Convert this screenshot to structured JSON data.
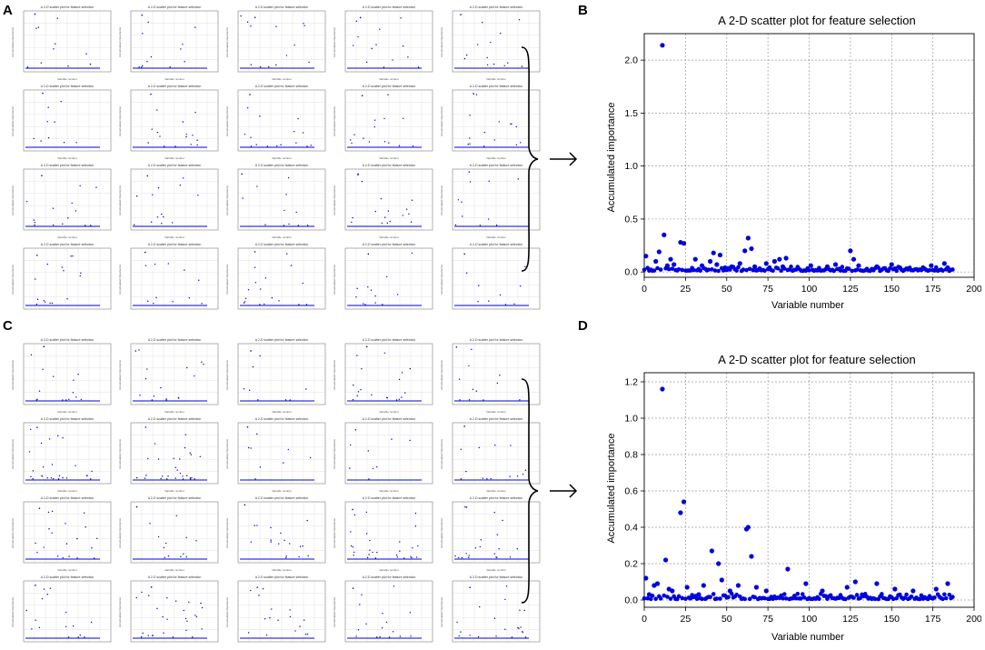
{
  "panels": {
    "a": "A",
    "b": "B",
    "c": "C",
    "d": "D"
  },
  "small_plot_labels": {
    "title": "A 2-D scatter plot for feature selection",
    "xlabel": "Variable number",
    "ylabel": "Accumulated importance"
  },
  "colors": {
    "points": "#0000dd",
    "grid": "#9a9a9a"
  },
  "chart_data": [
    {
      "id": "B",
      "type": "scatter",
      "title": "A 2-D scatter plot for feature selection",
      "xlabel": "Variable number",
      "ylabel": "Accumulated importance",
      "xlim": [
        0,
        200
      ],
      "ylim": [
        -0.05,
        2.25
      ],
      "xticks": [
        0,
        25,
        50,
        75,
        100,
        125,
        150,
        175,
        200
      ],
      "yticks": [
        0.0,
        0.5,
        1.0,
        1.5,
        2.0
      ],
      "ytick_labels": [
        "0.0",
        "0.5",
        "1.0",
        "1.5",
        "2.0"
      ],
      "grid": true,
      "highlights": [
        {
          "x": 1,
          "y": 0.15
        },
        {
          "x": 4,
          "y": 0.02
        },
        {
          "x": 7,
          "y": 0.1
        },
        {
          "x": 9,
          "y": 0.19
        },
        {
          "x": 11,
          "y": 2.14
        },
        {
          "x": 12,
          "y": 0.35
        },
        {
          "x": 14,
          "y": 0.06
        },
        {
          "x": 16,
          "y": 0.12
        },
        {
          "x": 18,
          "y": 0.07
        },
        {
          "x": 22,
          "y": 0.28
        },
        {
          "x": 24,
          "y": 0.27
        },
        {
          "x": 31,
          "y": 0.12
        },
        {
          "x": 35,
          "y": 0.06
        },
        {
          "x": 40,
          "y": 0.1
        },
        {
          "x": 42,
          "y": 0.18
        },
        {
          "x": 44,
          "y": 0.07
        },
        {
          "x": 46,
          "y": 0.16
        },
        {
          "x": 53,
          "y": 0.05
        },
        {
          "x": 58,
          "y": 0.08
        },
        {
          "x": 61,
          "y": 0.2
        },
        {
          "x": 63,
          "y": 0.32
        },
        {
          "x": 65,
          "y": 0.22
        },
        {
          "x": 67,
          "y": 0.05
        },
        {
          "x": 74,
          "y": 0.08
        },
        {
          "x": 79,
          "y": 0.1
        },
        {
          "x": 82,
          "y": 0.12
        },
        {
          "x": 84,
          "y": 0.05
        },
        {
          "x": 86,
          "y": 0.13
        },
        {
          "x": 101,
          "y": 0.06
        },
        {
          "x": 111,
          "y": 0.05
        },
        {
          "x": 116,
          "y": 0.07
        },
        {
          "x": 125,
          "y": 0.2
        },
        {
          "x": 127,
          "y": 0.12
        },
        {
          "x": 130,
          "y": 0.06
        },
        {
          "x": 141,
          "y": 0.05
        },
        {
          "x": 150,
          "y": 0.07
        },
        {
          "x": 155,
          "y": 0.04
        },
        {
          "x": 170,
          "y": 0.03
        },
        {
          "x": 174,
          "y": 0.06
        },
        {
          "x": 182,
          "y": 0.08
        },
        {
          "x": 184,
          "y": 0.04
        }
      ],
      "baseline": {
        "x_start": 0,
        "x_end": 187,
        "level": 0.01,
        "jitter": 0.05
      }
    },
    {
      "id": "D",
      "type": "scatter",
      "title": "A 2-D scatter plot for feature selection",
      "xlabel": "Variable number",
      "ylabel": "Accumulated importance",
      "xlim": [
        0,
        200
      ],
      "ylim": [
        -0.04,
        1.25
      ],
      "xticks": [
        0,
        25,
        50,
        75,
        100,
        125,
        150,
        175,
        200
      ],
      "yticks": [
        0.0,
        0.2,
        0.4,
        0.6,
        0.8,
        1.0,
        1.2
      ],
      "ytick_labels": [
        "0.0",
        "0.2",
        "0.4",
        "0.6",
        "0.8",
        "1.0",
        "1.2"
      ],
      "grid": true,
      "highlights": [
        {
          "x": 1,
          "y": 0.12
        },
        {
          "x": 3,
          "y": 0.03
        },
        {
          "x": 6,
          "y": 0.08
        },
        {
          "x": 8,
          "y": 0.09
        },
        {
          "x": 11,
          "y": 1.16
        },
        {
          "x": 13,
          "y": 0.22
        },
        {
          "x": 15,
          "y": 0.06
        },
        {
          "x": 17,
          "y": 0.05
        },
        {
          "x": 22,
          "y": 0.48
        },
        {
          "x": 24,
          "y": 0.54
        },
        {
          "x": 26,
          "y": 0.07
        },
        {
          "x": 33,
          "y": 0.03
        },
        {
          "x": 36,
          "y": 0.08
        },
        {
          "x": 41,
          "y": 0.27
        },
        {
          "x": 45,
          "y": 0.2
        },
        {
          "x": 47,
          "y": 0.11
        },
        {
          "x": 52,
          "y": 0.05
        },
        {
          "x": 57,
          "y": 0.08
        },
        {
          "x": 62,
          "y": 0.39
        },
        {
          "x": 63,
          "y": 0.4
        },
        {
          "x": 65,
          "y": 0.24
        },
        {
          "x": 68,
          "y": 0.07
        },
        {
          "x": 74,
          "y": 0.05
        },
        {
          "x": 87,
          "y": 0.17
        },
        {
          "x": 98,
          "y": 0.09
        },
        {
          "x": 108,
          "y": 0.05
        },
        {
          "x": 123,
          "y": 0.07
        },
        {
          "x": 128,
          "y": 0.1
        },
        {
          "x": 141,
          "y": 0.09
        },
        {
          "x": 152,
          "y": 0.06
        },
        {
          "x": 163,
          "y": 0.05
        },
        {
          "x": 177,
          "y": 0.06
        },
        {
          "x": 184,
          "y": 0.09
        }
      ],
      "baseline": {
        "x_start": 0,
        "x_end": 187,
        "level": 0.005,
        "jitter": 0.035
      }
    }
  ]
}
